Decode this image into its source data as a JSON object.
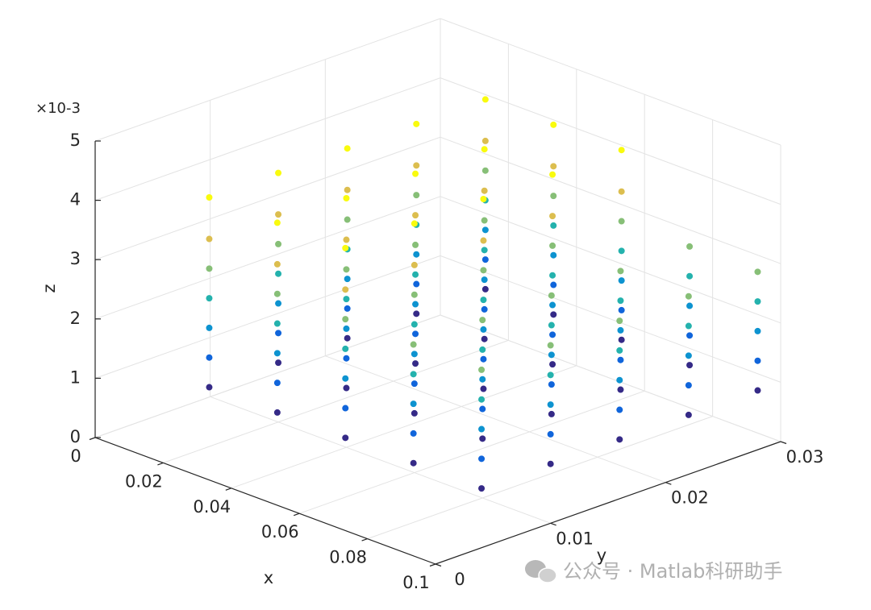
{
  "chart_data": {
    "type": "scatter3",
    "xlabel": "x",
    "ylabel": "y",
    "zlabel": "z",
    "z_exponent_label": "×10-3",
    "colormap": "parula",
    "grid": true,
    "xlim": [
      0,
      0.1
    ],
    "ylim": [
      0,
      0.03
    ],
    "zlim": [
      0,
      0.005
    ],
    "xticks": [
      0,
      0.02,
      0.04,
      0.06,
      0.08,
      0.1
    ],
    "yticks": [
      0,
      0.01,
      0.02,
      0.03
    ],
    "zticks": [
      {
        "value": 0,
        "label": "0"
      },
      {
        "value": 0.001,
        "label": "1"
      },
      {
        "value": 0.002,
        "label": "2"
      },
      {
        "value": 0.003,
        "label": "3"
      },
      {
        "value": 0.004,
        "label": "4"
      },
      {
        "value": 0.005,
        "label": "5"
      }
    ],
    "x": [
      0.02,
      0.02,
      0.02,
      0.02,
      0.02,
      0.02,
      0.02,
      0.02,
      0.02,
      0.02,
      0.02,
      0.02,
      0.02,
      0.02,
      0.02,
      0.02,
      0.02,
      0.02,
      0.02,
      0.02,
      0.02,
      0.02,
      0.02,
      0.02,
      0.02,
      0.04,
      0.04,
      0.04,
      0.04,
      0.04,
      0.04,
      0.04,
      0.04,
      0.04,
      0.04,
      0.04,
      0.04,
      0.04,
      0.04,
      0.04,
      0.04,
      0.04,
      0.04,
      0.04,
      0.04,
      0.04,
      0.04,
      0.04,
      0.04,
      0.04,
      0.06,
      0.06,
      0.06,
      0.06,
      0.06,
      0.06,
      0.06,
      0.06,
      0.06,
      0.06,
      0.06,
      0.06,
      0.06,
      0.06,
      0.06,
      0.06,
      0.06,
      0.06,
      0.06,
      0.06,
      0.06,
      0.06,
      0.06,
      0.06,
      0.06,
      0.08,
      0.08,
      0.08,
      0.08,
      0.08,
      0.08,
      0.08,
      0.08,
      0.08,
      0.08,
      0.08,
      0.08,
      0.08,
      0.08,
      0.08,
      0.08,
      0.08,
      0.08,
      0.08,
      0.08,
      0.08,
      0.08,
      0.08,
      0.08,
      0.08,
      0.1,
      0.1,
      0.1,
      0.1,
      0.1,
      0.1,
      0.1,
      0.1,
      0.1,
      0.1,
      0.1,
      0.1,
      0.1,
      0.1,
      0.1,
      0.1,
      0.1,
      0.1,
      0.1,
      0.1,
      0.1,
      0.1,
      0.1,
      0.1,
      0.1,
      0.02,
      0.02,
      0.02,
      0.02,
      0.02,
      0.02,
      0.02,
      0.02,
      0.02,
      0.02,
      0.04,
      0.04,
      0.04,
      0.04,
      0.04,
      0.04,
      0.04,
      0.04,
      0.04,
      0.04,
      0.06,
      0.06,
      0.06,
      0.06,
      0.06,
      0.06,
      0.06,
      0.06,
      0.06,
      0.06
    ],
    "y": [
      0.004,
      0.004,
      0.004,
      0.004,
      0.004,
      0.01,
      0.01,
      0.01,
      0.01,
      0.01,
      0.016,
      0.016,
      0.016,
      0.016,
      0.016,
      0.022,
      0.022,
      0.022,
      0.022,
      0.022,
      0.028,
      0.028,
      0.028,
      0.028,
      0.028,
      0.004,
      0.004,
      0.004,
      0.004,
      0.004,
      0.01,
      0.01,
      0.01,
      0.01,
      0.01,
      0.016,
      0.016,
      0.016,
      0.016,
      0.016,
      0.022,
      0.022,
      0.022,
      0.022,
      0.022,
      0.028,
      0.028,
      0.028,
      0.028,
      0.028,
      0.004,
      0.004,
      0.004,
      0.004,
      0.004,
      0.01,
      0.01,
      0.01,
      0.01,
      0.01,
      0.016,
      0.016,
      0.016,
      0.016,
      0.016,
      0.022,
      0.022,
      0.022,
      0.022,
      0.022,
      0.028,
      0.028,
      0.028,
      0.028,
      0.028,
      0.004,
      0.004,
      0.004,
      0.004,
      0.004,
      0.01,
      0.01,
      0.01,
      0.01,
      0.01,
      0.016,
      0.016,
      0.016,
      0.016,
      0.016,
      0.022,
      0.022,
      0.022,
      0.022,
      0.022,
      0.028,
      0.028,
      0.028,
      0.028,
      0.028,
      0.004,
      0.004,
      0.004,
      0.004,
      0.004,
      0.01,
      0.01,
      0.01,
      0.01,
      0.01,
      0.016,
      0.016,
      0.016,
      0.016,
      0.016,
      0.022,
      0.022,
      0.022,
      0.022,
      0.022,
      0.028,
      0.028,
      0.028,
      0.028,
      0.028,
      0.004,
      0.004,
      0.01,
      0.01,
      0.016,
      0.016,
      0.022,
      0.022,
      0.028,
      0.028,
      0.004,
      0.004,
      0.01,
      0.01,
      0.016,
      0.016,
      0.022,
      0.022,
      0.028,
      0.028,
      0.004,
      0.004,
      0.01,
      0.01,
      0.016,
      0.016,
      0.022,
      0.022,
      0.028,
      0.028
    ],
    "z": [
      0.001,
      0.0015,
      0.002,
      0.0025,
      0.003,
      0.001,
      0.0015,
      0.002,
      0.0025,
      0.003,
      0.001,
      0.0015,
      0.002,
      0.0025,
      0.003,
      0.001,
      0.0015,
      0.002,
      0.0025,
      0.003,
      0.001,
      0.0015,
      0.002,
      0.0025,
      0.003,
      0.001,
      0.0015,
      0.002,
      0.0025,
      0.003,
      0.001,
      0.0015,
      0.002,
      0.0025,
      0.003,
      0.001,
      0.0015,
      0.002,
      0.0025,
      0.003,
      0.001,
      0.0015,
      0.002,
      0.0025,
      0.003,
      0.001,
      0.0015,
      0.002,
      0.0025,
      0.003,
      0.001,
      0.0015,
      0.002,
      0.0025,
      0.003,
      0.001,
      0.0015,
      0.002,
      0.0025,
      0.003,
      0.001,
      0.0015,
      0.002,
      0.0025,
      0.003,
      0.001,
      0.0015,
      0.002,
      0.0025,
      0.003,
      0.001,
      0.0015,
      0.002,
      0.0025,
      0.003,
      0.001,
      0.0015,
      0.002,
      0.0025,
      0.003,
      0.001,
      0.0015,
      0.002,
      0.0025,
      0.003,
      0.001,
      0.0015,
      0.002,
      0.0025,
      0.003,
      0.001,
      0.0015,
      0.002,
      0.0025,
      0.003,
      0.001,
      0.0015,
      0.002,
      0.0025,
      0.003,
      0.001,
      0.0015,
      0.002,
      0.0025,
      0.003,
      0.001,
      0.0015,
      0.002,
      0.0025,
      0.003,
      0.001,
      0.0015,
      0.002,
      0.0025,
      0.003,
      0.001,
      0.0015,
      0.002,
      0.0025,
      0.003,
      0.001,
      0.0015,
      0.002,
      0.0025,
      0.003,
      0.0035,
      0.0042,
      0.0035,
      0.0042,
      0.0035,
      0.0042,
      0.0035,
      0.0042,
      0.0035,
      0.0042,
      0.0035,
      0.0042,
      0.0035,
      0.0042,
      0.0035,
      0.0042,
      0.0035,
      0.0042,
      0.0035,
      0.0042,
      0.0035,
      0.0042,
      0.0035,
      0.0042,
      0.0035,
      0.0042,
      0.0035,
      0.0042,
      0.0035,
      0.0042
    ]
  },
  "watermark": "公众号 · Matlab科研助手"
}
